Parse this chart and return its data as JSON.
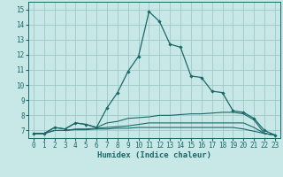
{
  "xlabel": "Humidex (Indice chaleur)",
  "xlim": [
    -0.5,
    23.5
  ],
  "ylim": [
    6.5,
    15.5
  ],
  "yticks": [
    7,
    8,
    9,
    10,
    11,
    12,
    13,
    14,
    15
  ],
  "xticks": [
    0,
    1,
    2,
    3,
    4,
    5,
    6,
    7,
    8,
    9,
    10,
    11,
    12,
    13,
    14,
    15,
    16,
    17,
    18,
    19,
    20,
    21,
    22,
    23
  ],
  "bg_color": "#c8e8e8",
  "line_color": "#1a6868",
  "grid_color": "#a0c8c8",
  "lines": [
    {
      "x": [
        0,
        1,
        2,
        3,
        4,
        5,
        6,
        7,
        8,
        9,
        10,
        11,
        12,
        13,
        14,
        15,
        16,
        17,
        18,
        19,
        20,
        21,
        22,
        23
      ],
      "y": [
        6.8,
        6.8,
        7.2,
        7.1,
        7.5,
        7.4,
        7.2,
        8.5,
        9.5,
        10.9,
        11.9,
        14.85,
        14.2,
        12.7,
        12.5,
        10.6,
        10.5,
        9.6,
        9.5,
        8.3,
        8.2,
        7.8,
        7.0,
        6.7
      ],
      "marker": true
    },
    {
      "x": [
        0,
        1,
        2,
        3,
        4,
        5,
        6,
        7,
        8,
        9,
        10,
        11,
        12,
        13,
        14,
        15,
        16,
        17,
        18,
        19,
        20,
        21,
        22,
        23
      ],
      "y": [
        6.8,
        6.8,
        7.2,
        7.1,
        7.5,
        7.4,
        7.2,
        7.5,
        7.6,
        7.8,
        7.85,
        7.9,
        8.0,
        8.0,
        8.05,
        8.1,
        8.1,
        8.15,
        8.2,
        8.2,
        8.1,
        7.7,
        6.8,
        6.7
      ],
      "marker": false
    },
    {
      "x": [
        0,
        1,
        2,
        3,
        4,
        5,
        6,
        7,
        8,
        9,
        10,
        11,
        12,
        13,
        14,
        15,
        16,
        17,
        18,
        19,
        20,
        21,
        22,
        23
      ],
      "y": [
        6.8,
        6.8,
        7.0,
        7.0,
        7.1,
        7.1,
        7.15,
        7.2,
        7.25,
        7.3,
        7.4,
        7.5,
        7.5,
        7.5,
        7.5,
        7.5,
        7.5,
        7.5,
        7.5,
        7.5,
        7.5,
        7.2,
        6.8,
        6.7
      ],
      "marker": false
    },
    {
      "x": [
        0,
        1,
        2,
        3,
        4,
        5,
        6,
        7,
        8,
        9,
        10,
        11,
        12,
        13,
        14,
        15,
        16,
        17,
        18,
        19,
        20,
        21,
        22,
        23
      ],
      "y": [
        6.8,
        6.8,
        7.0,
        7.0,
        7.05,
        7.05,
        7.1,
        7.1,
        7.15,
        7.15,
        7.2,
        7.2,
        7.2,
        7.2,
        7.2,
        7.2,
        7.2,
        7.2,
        7.2,
        7.2,
        7.1,
        6.95,
        6.8,
        6.7
      ],
      "marker": false
    }
  ]
}
